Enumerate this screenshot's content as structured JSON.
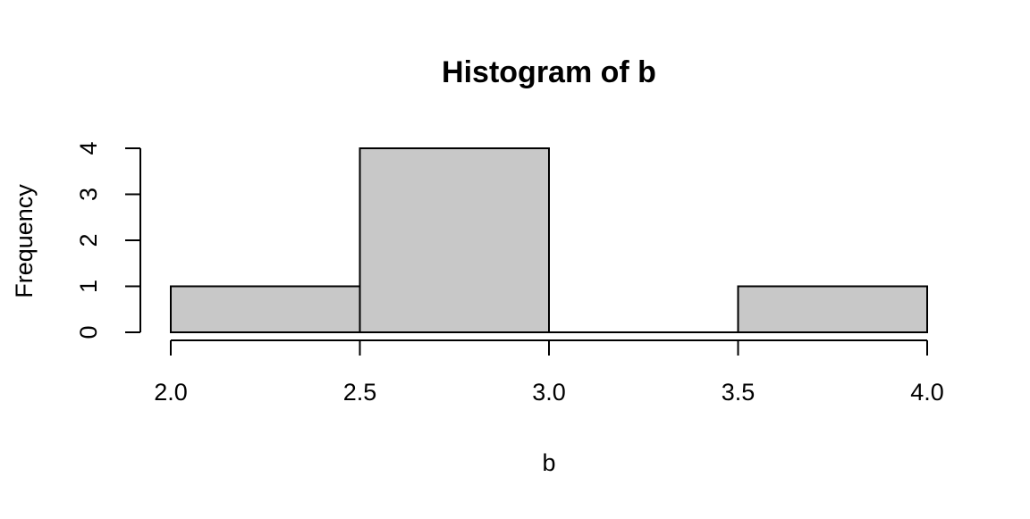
{
  "chart_data": {
    "type": "bar",
    "title": "Histogram of b",
    "xlabel": "b",
    "ylabel": "Frequency",
    "bins": [
      {
        "start": 2.0,
        "end": 2.5,
        "count": 1
      },
      {
        "start": 2.5,
        "end": 3.0,
        "count": 4
      },
      {
        "start": 3.0,
        "end": 3.5,
        "count": 0
      },
      {
        "start": 3.5,
        "end": 4.0,
        "count": 1
      }
    ],
    "x_ticks": [
      "2.0",
      "2.5",
      "3.0",
      "3.5",
      "4.0"
    ],
    "y_ticks": [
      "0",
      "1",
      "2",
      "3",
      "4"
    ],
    "xlim": [
      2.0,
      4.0
    ],
    "ylim": [
      0,
      4
    ],
    "bar_color": "#c8c8c8",
    "grid": false
  }
}
